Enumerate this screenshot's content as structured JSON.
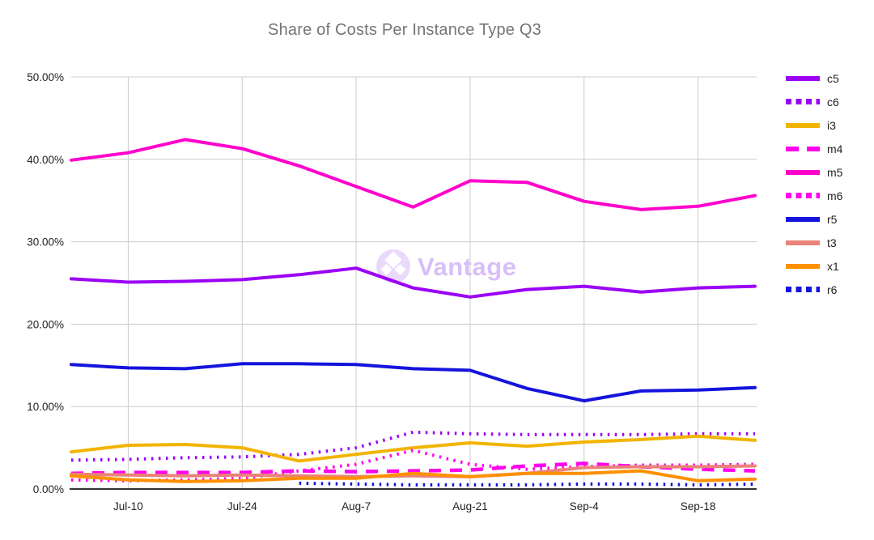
{
  "title": "Share of Costs Per Instance Type Q3",
  "watermark": {
    "text": "Vantage",
    "logo": "vantage-diamonds-logo",
    "circle_color": "#e9d9fb",
    "text_color": "#d8bff7"
  },
  "axis_color": "#333333",
  "gridline_color": "#cccccc",
  "chart_data": {
    "type": "line",
    "title": "Share of Costs Per Instance Type Q3",
    "xlabel": "",
    "ylabel": "",
    "ylim": [
      0,
      50
    ],
    "grid": true,
    "legend_position": "right",
    "y_ticks": [
      "50.00%",
      "40.00%",
      "30.00%",
      "20.00%",
      "10.00%",
      "0.00%"
    ],
    "x_labels": [
      "Jul-10",
      "Jul-24",
      "Aug-7",
      "Aug-21",
      "Sep-4",
      "Sep-18"
    ],
    "x_gridline_indices": [
      1,
      3,
      5,
      7,
      9,
      11
    ],
    "n_points": 13,
    "point_cadence": "weekly",
    "series": [
      {
        "name": "c5",
        "color": "#9b00f5",
        "style": "solid",
        "values": [
          25.5,
          25.1,
          25.2,
          25.4,
          26.0,
          26.8,
          24.4,
          23.3,
          24.2,
          24.6,
          23.9,
          24.4,
          24.6
        ]
      },
      {
        "name": "c6",
        "color": "#9b00f5",
        "style": "dotted",
        "values": [
          3.5,
          3.6,
          3.8,
          3.9,
          4.2,
          5.0,
          6.9,
          6.7,
          6.6,
          6.6,
          6.6,
          6.7,
          6.7
        ]
      },
      {
        "name": "i3",
        "color": "#f2b400",
        "style": "solid",
        "values": [
          4.5,
          5.3,
          5.4,
          5.0,
          3.4,
          4.2,
          5.0,
          5.6,
          5.2,
          5.7,
          6.0,
          6.4,
          5.9
        ]
      },
      {
        "name": "m4",
        "color": "#ff00ee",
        "style": "dashed",
        "values": [
          1.9,
          2.0,
          2.0,
          2.0,
          2.2,
          2.1,
          2.2,
          2.3,
          2.8,
          3.1,
          2.7,
          2.4,
          2.2
        ]
      },
      {
        "name": "m5",
        "color": "#ff00cc",
        "style": "solid",
        "values": [
          39.9,
          40.8,
          42.4,
          41.3,
          39.2,
          36.7,
          34.2,
          37.4,
          37.2,
          34.9,
          33.9,
          34.3,
          35.6
        ]
      },
      {
        "name": "m6",
        "color": "#ff00ee",
        "style": "dotted",
        "values": [
          1.1,
          1.0,
          1.1,
          1.3,
          2.2,
          3.0,
          4.7,
          3.0,
          2.4,
          2.7,
          2.9,
          2.9,
          3.0
        ]
      },
      {
        "name": "r5",
        "color": "#1414dc",
        "style": "solid",
        "values": [
          15.1,
          14.7,
          14.6,
          15.2,
          15.2,
          15.1,
          14.6,
          14.4,
          12.2,
          10.7,
          11.9,
          12.0,
          12.3
        ]
      },
      {
        "name": "t3",
        "color": "#ea8279",
        "style": "solid",
        "values": [
          1.8,
          1.7,
          1.6,
          1.7,
          1.6,
          1.5,
          1.6,
          1.5,
          1.9,
          2.6,
          2.7,
          2.7,
          2.8
        ]
      },
      {
        "name": "x1",
        "color": "#ff9000",
        "style": "solid",
        "values": [
          1.6,
          1.1,
          0.9,
          1.0,
          1.3,
          1.3,
          1.9,
          1.5,
          1.9,
          1.9,
          2.2,
          1.0,
          1.2
        ]
      },
      {
        "name": "r6",
        "color": "#1414dc",
        "style": "dotted",
        "values": [
          null,
          null,
          null,
          null,
          0.7,
          0.6,
          0.5,
          0.5,
          0.5,
          0.6,
          0.6,
          0.5,
          0.6
        ]
      }
    ]
  }
}
